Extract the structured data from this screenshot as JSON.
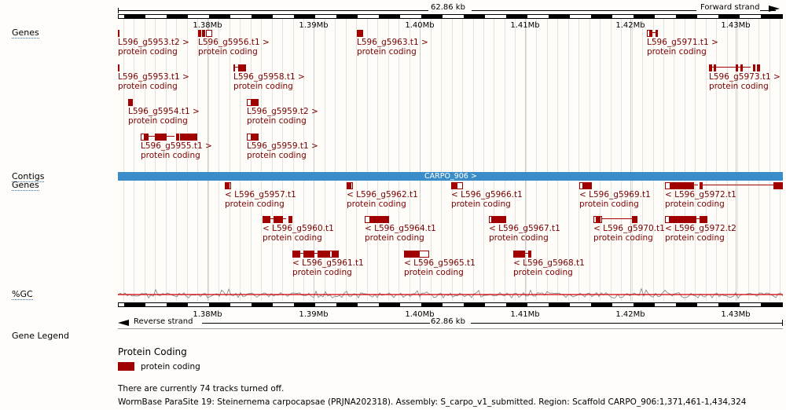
{
  "header": {
    "span_label": "62.86 kb",
    "forward_strand": "Forward strand",
    "reverse_strand": "Reverse strand"
  },
  "ticks": [
    "1.38Mb",
    "1.39Mb",
    "1.40Mb",
    "1.41Mb",
    "1.42Mb",
    "1.43Mb"
  ],
  "tracks": {
    "genes_forward": "Genes",
    "contigs": "Contigs",
    "genes_reverse": "Genes",
    "gc": "%GC",
    "gene_legend": "Gene Legend"
  },
  "contig": {
    "label": "CARPO_906 >",
    "color": "#3a8dc8"
  },
  "forward_genes": [
    {
      "id": "L596_g5953.t2 >",
      "biotype": "protein coding"
    },
    {
      "id": "L596_g5956.t1 >",
      "biotype": "protein coding"
    },
    {
      "id": "L596_g5963.t1 >",
      "biotype": "protein coding"
    },
    {
      "id": "L596_g5971.t1 >",
      "biotype": "protein coding"
    },
    {
      "id": "L596_g5953.t1 >",
      "biotype": "protein coding"
    },
    {
      "id": "L596_g5958.t1 >",
      "biotype": "protein coding"
    },
    {
      "id": "L596_g5973.t1 >",
      "biotype": "protein coding"
    },
    {
      "id": "L596_g5954.t1 >",
      "biotype": "protein coding"
    },
    {
      "id": "L596_g5959.t2 >",
      "biotype": "protein coding"
    },
    {
      "id": "L596_g5955.t1 >",
      "biotype": "protein coding"
    },
    {
      "id": "L596_g5959.t1 >",
      "biotype": "protein coding"
    }
  ],
  "reverse_genes": [
    {
      "id": "< L596_g5957.t1",
      "biotype": "protein coding"
    },
    {
      "id": "< L596_g5962.t1",
      "biotype": "protein coding"
    },
    {
      "id": "< L596_g5966.t1",
      "biotype": "protein coding"
    },
    {
      "id": "< L596_g5969.t1",
      "biotype": "protein coding"
    },
    {
      "id": "< L596_g5972.t1",
      "biotype": "protein coding"
    },
    {
      "id": "< L596_g5960.t1",
      "biotype": "protein coding"
    },
    {
      "id": "< L596_g5964.t1",
      "biotype": "protein coding"
    },
    {
      "id": "< L596_g5967.t1",
      "biotype": "protein coding"
    },
    {
      "id": "< L596_g5970.t1",
      "biotype": "protein coding"
    },
    {
      "id": "< L596_g5972.t2",
      "biotype": "protein coding"
    },
    {
      "id": "< L596_g5961.t1",
      "biotype": "protein coding"
    },
    {
      "id": "< L596_g5965.t1",
      "biotype": "protein coding"
    },
    {
      "id": "< L596_g5968.t1",
      "biotype": "protein coding"
    }
  ],
  "legend": {
    "heading": "Protein Coding",
    "item_label": "protein coding",
    "item_color": "#a00000"
  },
  "footer": {
    "tracks_off": "There are currently 74 tracks turned off.",
    "info": "WormBase ParaSite 19: Steinernema carpocapsae (PRJNA202318). Assembly: S_carpo_v1_submitted. Region: Scaffold CARPO_906:1,371,461-1,434,324"
  },
  "colors": {
    "gene": "#a00000",
    "gene_label": "#7a0000",
    "gc_line": "#808080",
    "gc_mean": "#d00000"
  }
}
